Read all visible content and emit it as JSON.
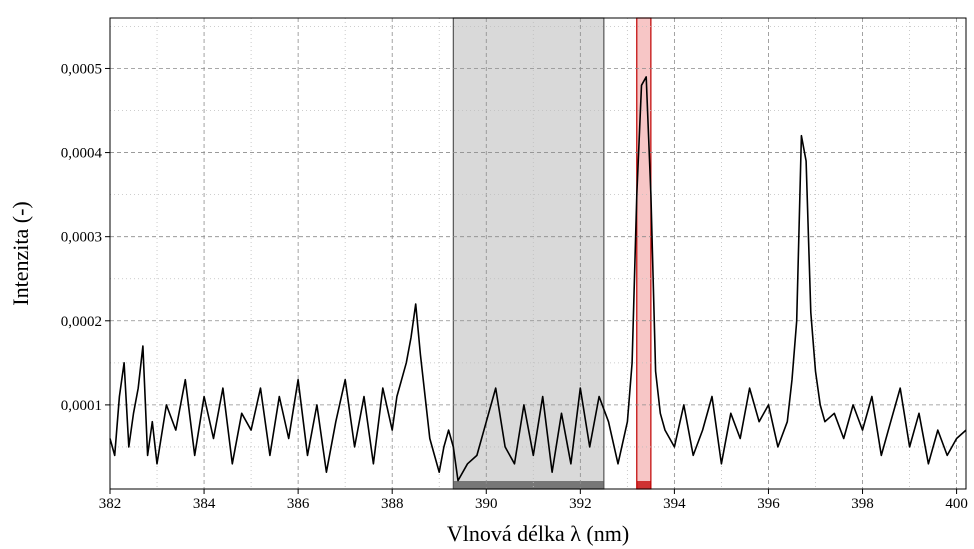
{
  "chart_data": {
    "type": "line",
    "title": "",
    "xlabel": "Vlnová délka λ (nm)",
    "ylabel": "Intenzita (-)",
    "xlim": [
      382,
      400.2
    ],
    "ylim": [
      0,
      0.00056
    ],
    "grid": true,
    "xticks": [
      382,
      384,
      386,
      388,
      390,
      392,
      394,
      396,
      398,
      400
    ],
    "xtick_labels": [
      "382",
      "384",
      "386",
      "388",
      "390",
      "392",
      "394",
      "396",
      "398",
      "400"
    ],
    "yticks": [
      0.0001,
      0.0002,
      0.0003,
      0.0004,
      0.0005
    ],
    "ytick_labels": [
      "0,0001",
      "0,0002",
      "0,0003",
      "0,0004",
      "0,0005"
    ],
    "regions": [
      {
        "kind": "background-window",
        "x_range": [
          389.3,
          392.5
        ],
        "color": "#d9d9d9",
        "edge_color": "#555555"
      },
      {
        "kind": "peak-window",
        "x_range": [
          393.2,
          393.5
        ],
        "color": "#f7c6c6",
        "edge_color": "#c00000"
      }
    ],
    "series": [
      {
        "color": "#000000",
        "x": [
          382.0,
          382.1,
          382.2,
          382.3,
          382.4,
          382.5,
          382.6,
          382.7,
          382.8,
          382.9,
          383.0,
          383.2,
          383.4,
          383.6,
          383.8,
          384.0,
          384.2,
          384.4,
          384.6,
          384.8,
          385.0,
          385.2,
          385.4,
          385.6,
          385.8,
          386.0,
          386.2,
          386.4,
          386.6,
          386.8,
          387.0,
          387.2,
          387.4,
          387.6,
          387.8,
          388.0,
          388.1,
          388.2,
          388.3,
          388.4,
          388.5,
          388.6,
          388.7,
          388.8,
          388.9,
          389.0,
          389.1,
          389.2,
          389.3,
          389.4,
          389.6,
          389.8,
          390.0,
          390.2,
          390.4,
          390.6,
          390.8,
          391.0,
          391.2,
          391.4,
          391.6,
          391.8,
          392.0,
          392.2,
          392.4,
          392.6,
          392.8,
          393.0,
          393.1,
          393.2,
          393.3,
          393.4,
          393.5,
          393.6,
          393.7,
          393.8,
          394.0,
          394.2,
          394.4,
          394.6,
          394.8,
          395.0,
          395.2,
          395.4,
          395.6,
          395.8,
          396.0,
          396.2,
          396.4,
          396.5,
          396.6,
          396.7,
          396.8,
          396.9,
          397.0,
          397.1,
          397.2,
          397.4,
          397.6,
          397.8,
          398.0,
          398.2,
          398.4,
          398.6,
          398.8,
          399.0,
          399.2,
          399.4,
          399.6,
          399.8,
          400.0,
          400.2
        ],
        "y": [
          6e-05,
          4e-05,
          0.00011,
          0.00015,
          5e-05,
          9e-05,
          0.00012,
          0.00017,
          4e-05,
          8e-05,
          3e-05,
          0.0001,
          7e-05,
          0.00013,
          4e-05,
          0.00011,
          6e-05,
          0.00012,
          3e-05,
          9e-05,
          7e-05,
          0.00012,
          4e-05,
          0.00011,
          6e-05,
          0.00013,
          4e-05,
          0.0001,
          2e-05,
          8e-05,
          0.00013,
          5e-05,
          0.00011,
          3e-05,
          0.00012,
          7e-05,
          0.00011,
          0.00013,
          0.00015,
          0.00018,
          0.00022,
          0.00016,
          0.00011,
          6e-05,
          4e-05,
          2e-05,
          5e-05,
          7e-05,
          5e-05,
          1e-05,
          3e-05,
          4e-05,
          8e-05,
          0.00012,
          5e-05,
          3e-05,
          0.0001,
          4e-05,
          0.00011,
          2e-05,
          9e-05,
          3e-05,
          0.00012,
          5e-05,
          0.00011,
          8e-05,
          3e-05,
          8e-05,
          0.00015,
          0.00035,
          0.00048,
          0.00049,
          0.00035,
          0.00014,
          9e-05,
          7e-05,
          5e-05,
          0.0001,
          4e-05,
          7e-05,
          0.00011,
          3e-05,
          9e-05,
          6e-05,
          0.00012,
          8e-05,
          0.0001,
          5e-05,
          8e-05,
          0.00013,
          0.0002,
          0.00042,
          0.00039,
          0.00021,
          0.00014,
          0.0001,
          8e-05,
          9e-05,
          6e-05,
          0.0001,
          7e-05,
          0.00011,
          4e-05,
          8e-05,
          0.00012,
          5e-05,
          9e-05,
          3e-05,
          7e-05,
          4e-05,
          6e-05,
          7e-05
        ]
      }
    ]
  }
}
